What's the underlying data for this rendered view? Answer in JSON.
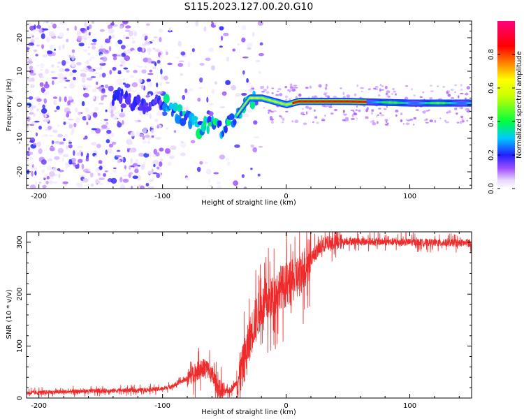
{
  "title": "S115.2023.127.00.20.G10",
  "chart_data": [
    {
      "type": "heatmap",
      "xlabel": "Height of straight line (km)",
      "ylabel": "Frequency (Hz)",
      "xlim": [
        -210,
        150
      ],
      "ylim": [
        -25,
        25
      ],
      "xticks": [
        -200,
        -100,
        0,
        100
      ],
      "yticks": [
        -20,
        -10,
        0,
        10,
        20
      ],
      "colorbar": {
        "label": "Normalized spectral amplitude",
        "ticks": [
          "0.0",
          "0.2",
          "0.4",
          "0.6",
          "0.8"
        ],
        "range": [
          0,
          1
        ]
      },
      "ridge": {
        "description_free": true,
        "x": [
          -135,
          -120,
          -100,
          -90,
          -80,
          -70,
          -60,
          -50,
          -40,
          -30,
          -20,
          -10,
          0,
          10,
          50,
          100,
          150
        ],
        "freq": [
          2,
          0,
          1,
          -2,
          -4,
          -7,
          -5,
          -8,
          -3,
          2,
          2,
          1,
          0,
          1,
          1,
          0.5,
          0.5
        ]
      },
      "grid": false
    },
    {
      "type": "line",
      "xlabel": "Height of straight line (km)",
      "ylabel": "SNR (10 * v/v)",
      "xlim": [
        -210,
        150
      ],
      "ylim": [
        0,
        320
      ],
      "xticks": [
        -200,
        -100,
        0,
        100
      ],
      "yticks": [
        0,
        100,
        200,
        300
      ],
      "series": [
        {
          "color": "#ee2a2a",
          "x": [
            -210,
            -180,
            -150,
            -120,
            -100,
            -90,
            -80,
            -70,
            -65,
            -60,
            -55,
            -50,
            -45,
            -40,
            -35,
            -30,
            -25,
            -20,
            -15,
            -10,
            -5,
            0,
            5,
            10,
            20,
            30,
            40,
            50,
            100,
            150
          ],
          "y": [
            10,
            12,
            14,
            15,
            18,
            25,
            38,
            55,
            60,
            45,
            20,
            12,
            15,
            30,
            60,
            110,
            150,
            175,
            185,
            195,
            215,
            215,
            225,
            235,
            270,
            295,
            300,
            302,
            300,
            298
          ]
        }
      ],
      "grid": false
    }
  ]
}
